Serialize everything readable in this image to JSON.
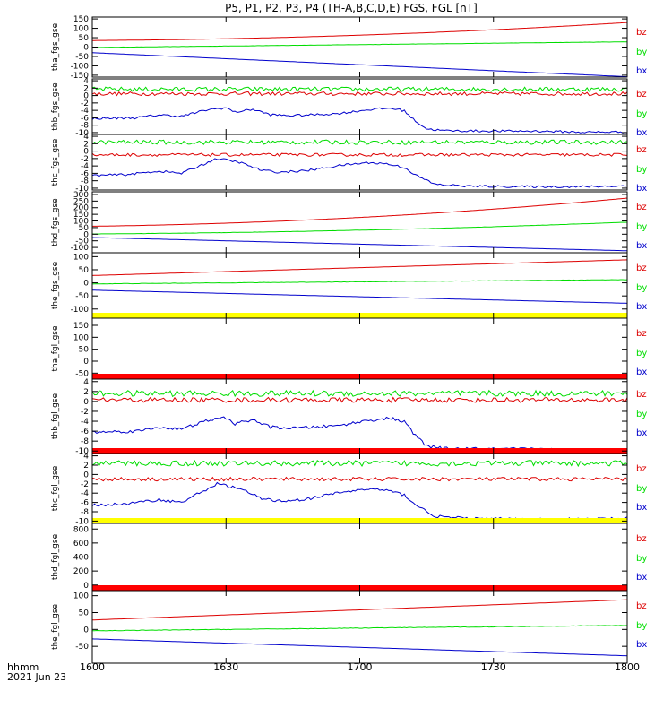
{
  "chart_data": {
    "type": "line",
    "title": "P5, P1, P2, P3, P4 (TH-A,B,C,D,E) FGS, FGL [nT]",
    "x_ticks": [
      "1600",
      "1630",
      "1700",
      "1730",
      "1800"
    ],
    "x_corner_label": "hhmm",
    "date_label": "2021 Jun 23",
    "x_range_minutes": [
      0,
      120
    ],
    "colors": {
      "bz": "#dd0000",
      "by": "#00dd00",
      "bx": "#0000cc",
      "yellow": "#ffff00",
      "red": "#ff0000"
    },
    "panels": [
      {
        "label": "tha_fgs_gse",
        "ylim": [
          -160,
          160
        ],
        "yticks": [
          150,
          100,
          50,
          0,
          -50,
          -100,
          -150
        ],
        "series": [
          {
            "name": "bz",
            "kind": "poly",
            "coef": [
              35,
              0.15,
              0.0054
            ],
            "noise": 0
          },
          {
            "name": "by",
            "kind": "linear",
            "start": -2,
            "end": 28,
            "noise": 0.6
          },
          {
            "name": "bx",
            "kind": "linear",
            "start": -30,
            "end": -158,
            "noise": 0
          }
        ],
        "bar": null
      },
      {
        "label": "thb_fgs_gse",
        "ylim": [
          -10.5,
          4.5
        ],
        "yticks": [
          4,
          2,
          0,
          -2,
          -4,
          -6,
          -8,
          -10
        ],
        "series": [
          {
            "name": "bz",
            "kind": "flat",
            "value": 0.5,
            "noise": 0.5
          },
          {
            "name": "by",
            "kind": "flat",
            "value": 1.7,
            "noise": 0.6
          },
          {
            "name": "bx",
            "kind": "points",
            "noise": 0.3,
            "x": [
              0,
              10,
              15,
              20,
              26,
              30,
              32,
              36,
              40,
              45,
              55,
              62,
              67,
              70,
              72,
              75,
              79,
              90,
              100,
              110,
              120
            ],
            "y": [
              -6.2,
              -6.0,
              -5.2,
              -5.6,
              -3.8,
              -3.3,
              -4.5,
              -3.7,
              -5.2,
              -5.4,
              -4.9,
              -3.8,
              -3.4,
              -4.1,
              -6.4,
              -9.0,
              -9.5,
              -9.6,
              -9.6,
              -9.9,
              -9.8
            ]
          }
        ],
        "bar": null
      },
      {
        "label": "thc_fgs_gse",
        "ylim": [
          -10.5,
          4.5
        ],
        "yticks": [
          4,
          2,
          0,
          -2,
          -4,
          -6,
          -8,
          -10
        ],
        "series": [
          {
            "name": "bz",
            "kind": "flat",
            "value": -1.0,
            "noise": 0.4
          },
          {
            "name": "by",
            "kind": "flat",
            "value": 2.4,
            "noise": 0.6
          },
          {
            "name": "bx",
            "kind": "points",
            "noise": 0.3,
            "x": [
              0,
              8,
              15,
              20,
              24,
              28,
              33,
              38,
              42,
              48,
              56,
              62,
              66,
              70,
              73,
              77,
              85,
              100,
              110,
              120
            ],
            "y": [
              -6.6,
              -6.3,
              -5.4,
              -6.0,
              -4.0,
              -2.0,
              -3.0,
              -5.2,
              -5.7,
              -5.3,
              -3.8,
              -3.1,
              -3.4,
              -4.4,
              -6.8,
              -9.0,
              -9.5,
              -9.6,
              -9.6,
              -9.4
            ]
          }
        ],
        "bar": null
      },
      {
        "label": "thd_fgs_gse",
        "ylim": [
          -140,
          320
        ],
        "yticks": [
          300,
          250,
          200,
          150,
          100,
          50,
          0,
          -50,
          -100
        ],
        "series": [
          {
            "name": "bz",
            "kind": "poly",
            "coef": [
              60,
              0.45,
              0.011
            ],
            "noise": 0
          },
          {
            "name": "by",
            "kind": "poly",
            "coef": [
              2,
              0.2,
              0.0045
            ],
            "noise": 0.8
          },
          {
            "name": "bx",
            "kind": "linear",
            "start": -25,
            "end": -125,
            "noise": 0
          }
        ],
        "bar": null
      },
      {
        "label": "the_fgs_gse",
        "ylim": [
          -135,
          115
        ],
        "yticks": [
          100,
          50,
          0,
          -50,
          -100
        ],
        "series": [
          {
            "name": "bz",
            "kind": "linear",
            "start": 28,
            "end": 88,
            "noise": 0
          },
          {
            "name": "by",
            "kind": "linear",
            "start": -4,
            "end": 12,
            "noise": 0.8
          },
          {
            "name": "bx",
            "kind": "linear",
            "start": -28,
            "end": -78,
            "noise": 0
          }
        ],
        "bar": "yellow"
      },
      {
        "label": "tha_fgl_gse",
        "ylim": [
          -75,
          180
        ],
        "yticks": [
          150,
          100,
          50,
          0,
          -50
        ],
        "series": [],
        "bar": "red"
      },
      {
        "label": "thb_fgl_gse",
        "ylim": [
          -10.5,
          4.5
        ],
        "yticks": [
          4,
          2,
          0,
          -2,
          -4,
          -6,
          -8,
          -10
        ],
        "series": [
          {
            "name": "bz",
            "kind": "flat",
            "value": 0.3,
            "noise": 0.5
          },
          {
            "name": "by",
            "kind": "flat",
            "value": 1.6,
            "noise": 0.6
          },
          {
            "name": "bx",
            "kind": "points",
            "noise": 0.3,
            "x": [
              0,
              10,
              15,
              20,
              26,
              30,
              32,
              36,
              40,
              45,
              55,
              62,
              67,
              70,
              72,
              75,
              79,
              90,
              100,
              110,
              120
            ],
            "y": [
              -6.2,
              -6.0,
              -5.2,
              -5.6,
              -3.8,
              -3.3,
              -4.5,
              -3.7,
              -5.2,
              -5.4,
              -4.9,
              -3.8,
              -3.4,
              -4.1,
              -6.4,
              -9.0,
              -9.5,
              -9.6,
              -9.6,
              -9.9,
              -9.8
            ]
          }
        ],
        "bar": "red"
      },
      {
        "label": "thc_fgl_gse",
        "ylim": [
          -10.5,
          4.5
        ],
        "yticks": [
          4,
          2,
          0,
          -2,
          -4,
          -6,
          -8,
          -10
        ],
        "series": [
          {
            "name": "bz",
            "kind": "flat",
            "value": -1.0,
            "noise": 0.4
          },
          {
            "name": "by",
            "kind": "flat",
            "value": 2.4,
            "noise": 0.6
          },
          {
            "name": "bx",
            "kind": "points",
            "noise": 0.3,
            "x": [
              0,
              8,
              15,
              20,
              24,
              28,
              33,
              38,
              42,
              48,
              56,
              62,
              66,
              70,
              73,
              77,
              85,
              100,
              110,
              120
            ],
            "y": [
              -6.6,
              -6.3,
              -5.4,
              -6.0,
              -4.0,
              -2.0,
              -3.0,
              -5.2,
              -5.7,
              -5.3,
              -3.8,
              -3.1,
              -3.4,
              -4.4,
              -6.8,
              -9.0,
              -9.5,
              -9.6,
              -9.6,
              -9.4
            ]
          }
        ],
        "bar": "yellow"
      },
      {
        "label": "thd_fgl_gse",
        "ylim": [
          -80,
          880
        ],
        "yticks": [
          800,
          600,
          400,
          200,
          0
        ],
        "series": [],
        "bar": "red"
      },
      {
        "label": "the_fgl_gse",
        "ylim": [
          -100,
          115
        ],
        "yticks": [
          100,
          50,
          0,
          -50
        ],
        "series": [
          {
            "name": "bz",
            "kind": "linear",
            "start": 28,
            "end": 88,
            "noise": 0
          },
          {
            "name": "by",
            "kind": "linear",
            "start": -4,
            "end": 12,
            "noise": 0.8
          },
          {
            "name": "bx",
            "kind": "linear",
            "start": -28,
            "end": -78,
            "noise": 0
          }
        ],
        "bar": null
      }
    ]
  }
}
